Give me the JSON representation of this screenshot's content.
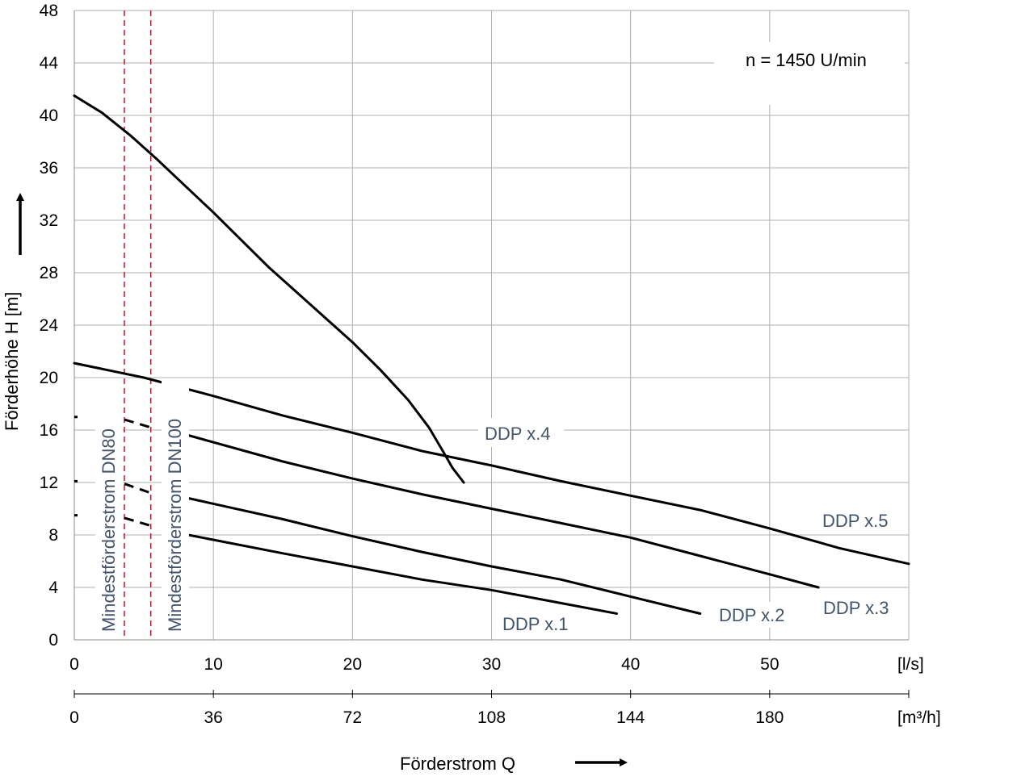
{
  "chart_data": {
    "type": "line",
    "ylabel": "Förderhöhe H  [m]",
    "xlabel": "Förderstrom Q",
    "annotation": "n = 1450   U/min",
    "x_unit": "[l/s]",
    "x2_unit": "[m³/h]",
    "xlim": [
      0,
      60
    ],
    "ylim": [
      0,
      48
    ],
    "x_ticks": [
      "0",
      "10",
      "20",
      "30",
      "40",
      "50"
    ],
    "x2_ticks": [
      "0",
      "36",
      "72",
      "108",
      "144",
      "180"
    ],
    "y_ticks": [
      "0",
      "4",
      "8",
      "12",
      "16",
      "20",
      "24",
      "28",
      "32",
      "36",
      "40",
      "44",
      "48"
    ],
    "grid": true,
    "min_flow_lines": [
      {
        "label": "Mindestförderstrom DN80",
        "x": 3.6,
        "color": "#c0142c"
      },
      {
        "label": "Mindestförderstrom DN100",
        "x": 5.5,
        "color": "#c0142c"
      }
    ],
    "series": [
      {
        "name": "DDP x.1",
        "color": "#000000",
        "dashed": [
          [
            3.6,
            9.3
          ],
          [
            5.5,
            8.7
          ]
        ],
        "points": [
          [
            8.2,
            8.0
          ],
          [
            15,
            6.6
          ],
          [
            20,
            5.6
          ],
          [
            25,
            4.6
          ],
          [
            30,
            3.8
          ],
          [
            35,
            2.8
          ],
          [
            39,
            2.0
          ]
        ]
      },
      {
        "name": "DDP x.2",
        "color": "#000000",
        "dashed": [
          [
            3.6,
            11.9
          ],
          [
            5.5,
            11.2
          ]
        ],
        "points": [
          [
            8.2,
            10.8
          ],
          [
            15,
            9.2
          ],
          [
            20,
            7.9
          ],
          [
            25,
            6.7
          ],
          [
            30,
            5.6
          ],
          [
            35,
            4.6
          ],
          [
            40,
            3.3
          ],
          [
            45,
            2.0
          ]
        ]
      },
      {
        "name": "DDP x.3",
        "color": "#000000",
        "dashed": [
          [
            3.6,
            16.8
          ],
          [
            5.5,
            16.2
          ]
        ],
        "points": [
          [
            8.2,
            15.6
          ],
          [
            15,
            13.6
          ],
          [
            20,
            12.3
          ],
          [
            25,
            11.1
          ],
          [
            30,
            10.0
          ],
          [
            35,
            8.9
          ],
          [
            40,
            7.8
          ],
          [
            45,
            6.4
          ],
          [
            50,
            5.0
          ],
          [
            53.5,
            4.0
          ]
        ]
      },
      {
        "name": "DDP x.4",
        "color": "#000000",
        "points": [
          [
            0,
            41.5
          ],
          [
            2,
            40.2
          ],
          [
            4,
            38.5
          ],
          [
            6,
            36.6
          ],
          [
            8,
            34.6
          ],
          [
            10,
            32.6
          ],
          [
            12,
            30.5
          ],
          [
            14,
            28.4
          ],
          [
            16,
            26.5
          ],
          [
            18,
            24.6
          ],
          [
            20,
            22.7
          ],
          [
            22,
            20.6
          ],
          [
            24,
            18.3
          ],
          [
            25.5,
            16.2
          ],
          [
            26.5,
            14.4
          ],
          [
            27.2,
            13.1
          ],
          [
            28,
            12.0
          ]
        ]
      },
      {
        "name": "DDP x.5",
        "color": "#000000",
        "points": [
          [
            0,
            21.1
          ],
          [
            5,
            20.0
          ],
          [
            10,
            18.6
          ],
          [
            15,
            17.1
          ],
          [
            20,
            15.8
          ],
          [
            25,
            14.4
          ],
          [
            30,
            13.3
          ],
          [
            35,
            12.1
          ],
          [
            40,
            11.0
          ],
          [
            45,
            9.9
          ],
          [
            50,
            8.5
          ],
          [
            55,
            7.0
          ],
          [
            60,
            5.8
          ]
        ]
      }
    ]
  }
}
